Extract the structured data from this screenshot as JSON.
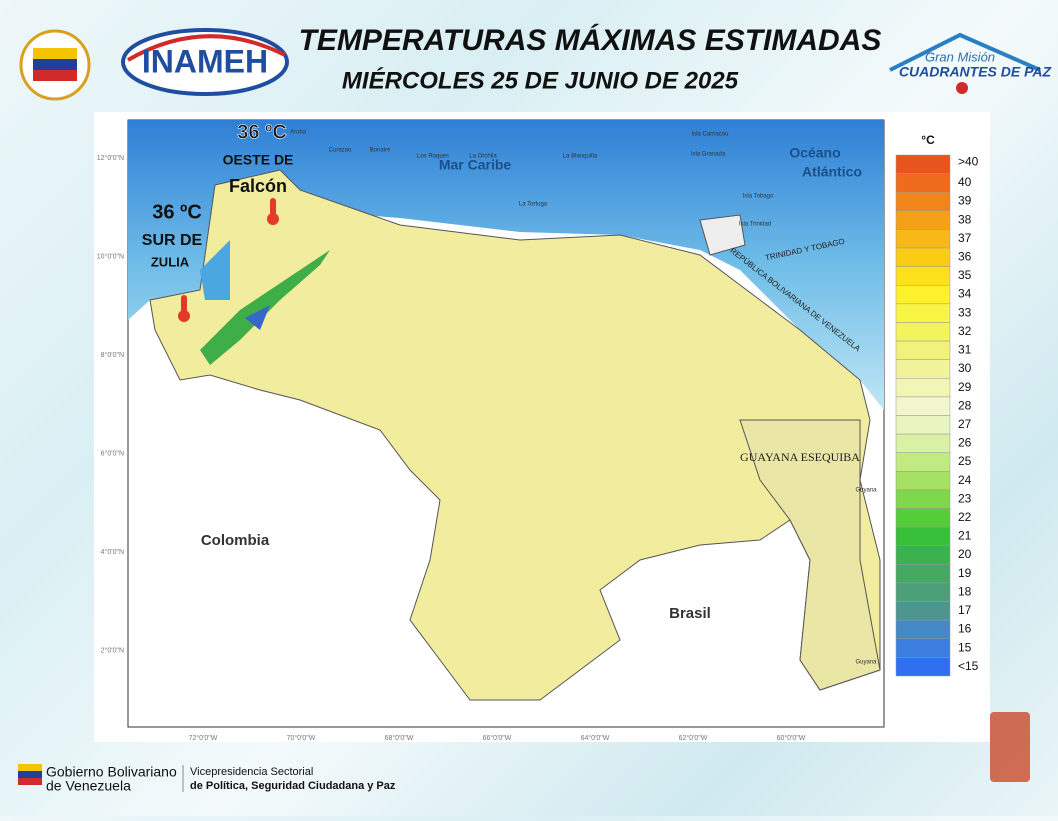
{
  "header": {
    "title": "TEMPERATURAS MÁXIMAS ESTIMADAS",
    "subtitle": "MIÉRCOLES 25 DE JUNIO DE 2025",
    "logo_center": "INAMEH",
    "logo_right_top": "Gran Misión",
    "logo_right_bottom": "CUADRANTES DE PAZ"
  },
  "map": {
    "sea_labels": [
      "Mar Caribe",
      "Océano",
      "Atlántico"
    ],
    "country_labels": [
      "Colombia",
      "Brasil",
      "GUAYANA ESEQUIBA",
      "TRINIDAD Y TOBAGO",
      "REPÚBLICA BOLIVARIANA DE VENEZUELA"
    ],
    "place_labels": [
      "Aruba",
      "Curazao",
      "Bonaire",
      "Los Roques",
      "La Orchila",
      "La Blanquilla",
      "La Tortuga",
      "Isla Carriacou",
      "Isla Granada",
      "Isla Tobago",
      "Isla Trinidad",
      "Guyana",
      "Guyana"
    ],
    "annotations": [
      {
        "temp": "36 ºC",
        "line1": "OESTE DE",
        "line2": "Falcón"
      },
      {
        "temp": "36 ºC",
        "line1": "SUR DE",
        "line2": "ZULIA"
      }
    ],
    "lat_labels": [
      "12°0'0\"N",
      "10°0'0\"N",
      "8°0'0\"N",
      "6°0'0\"N",
      "4°0'0\"N",
      "2°0'0\"N"
    ],
    "lon_labels": [
      "72°0'0\"W",
      "70°0'0\"W",
      "68°0'0\"W",
      "66°0'0\"W",
      "64°0'0\"W",
      "62°0'0\"W",
      "60°0'0\"W"
    ]
  },
  "legend": {
    "unit": "°C",
    "items": [
      {
        "label": ">40",
        "color": "#e8541e"
      },
      {
        "label": "40",
        "color": "#ee6a1d"
      },
      {
        "label": "39",
        "color": "#f0861b"
      },
      {
        "label": "38",
        "color": "#f5a01a"
      },
      {
        "label": "37",
        "color": "#f8b817"
      },
      {
        "label": "36",
        "color": "#fbcc14"
      },
      {
        "label": "35",
        "color": "#fde11a"
      },
      {
        "label": "34",
        "color": "#fdf12a"
      },
      {
        "label": "33",
        "color": "#f8f545"
      },
      {
        "label": "32",
        "color": "#f3f35e"
      },
      {
        "label": "31",
        "color": "#f0f27c"
      },
      {
        "label": "30",
        "color": "#f1f39b"
      },
      {
        "label": "29",
        "color": "#f3f5b5"
      },
      {
        "label": "28",
        "color": "#f1f6cc"
      },
      {
        "label": "27",
        "color": "#e8f5c0"
      },
      {
        "label": "26",
        "color": "#d8f1a2"
      },
      {
        "label": "25",
        "color": "#c1eb80"
      },
      {
        "label": "24",
        "color": "#a5e264"
      },
      {
        "label": "23",
        "color": "#7fd84b"
      },
      {
        "label": "22",
        "color": "#55cc3a"
      },
      {
        "label": "21",
        "color": "#39c03a"
      },
      {
        "label": "20",
        "color": "#3cb24f"
      },
      {
        "label": "19",
        "color": "#45a863"
      },
      {
        "label": "18",
        "color": "#4c9f79"
      },
      {
        "label": "17",
        "color": "#4d968f"
      },
      {
        "label": "16",
        "color": "#4488c6"
      },
      {
        "label": "15",
        "color": "#3b7ee0"
      },
      {
        "label": "<15",
        "color": "#2f6ff0"
      }
    ]
  },
  "footer": {
    "gov_line1": "Gobierno Bolivariano",
    "gov_line2": "de Venezuela",
    "vice_line1": "Vicepresidencia Sectorial",
    "vice_line2": "de Política, Seguridad Ciudadana y Paz"
  }
}
